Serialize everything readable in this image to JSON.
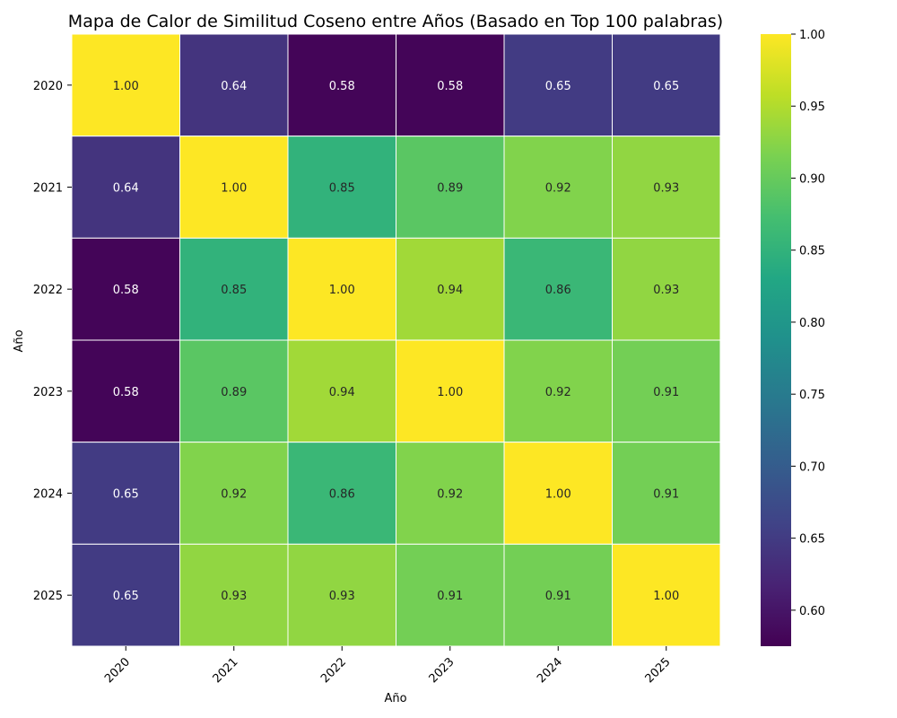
{
  "chart_data": {
    "type": "heatmap",
    "title": "Mapa de Calor de Similitud Coseno entre Años (Basado en Top 100 palabras)",
    "xlabel": "Año",
    "ylabel": "Año",
    "x_categories": [
      "2020",
      "2021",
      "2022",
      "2023",
      "2024",
      "2025"
    ],
    "y_categories": [
      "2020",
      "2021",
      "2022",
      "2023",
      "2024",
      "2025"
    ],
    "values": [
      [
        1.0,
        0.64,
        0.58,
        0.58,
        0.65,
        0.65
      ],
      [
        0.64,
        1.0,
        0.85,
        0.89,
        0.92,
        0.93
      ],
      [
        0.58,
        0.85,
        1.0,
        0.94,
        0.86,
        0.93
      ],
      [
        0.58,
        0.89,
        0.94,
        1.0,
        0.92,
        0.91
      ],
      [
        0.65,
        0.92,
        0.86,
        0.92,
        1.0,
        0.91
      ],
      [
        0.65,
        0.93,
        0.93,
        0.91,
        0.91,
        1.0
      ]
    ],
    "value_format": "0.00",
    "colormap": "viridis",
    "color_range": [
      0.575,
      1.0
    ],
    "colorbar": {
      "ticks": [
        "0.60",
        "0.65",
        "0.70",
        "0.75",
        "0.80",
        "0.85",
        "0.90",
        "0.95",
        "1.00"
      ],
      "position": "right"
    },
    "x_tick_rotation": "45 degrees",
    "cell_border_color": "#ffffff"
  }
}
